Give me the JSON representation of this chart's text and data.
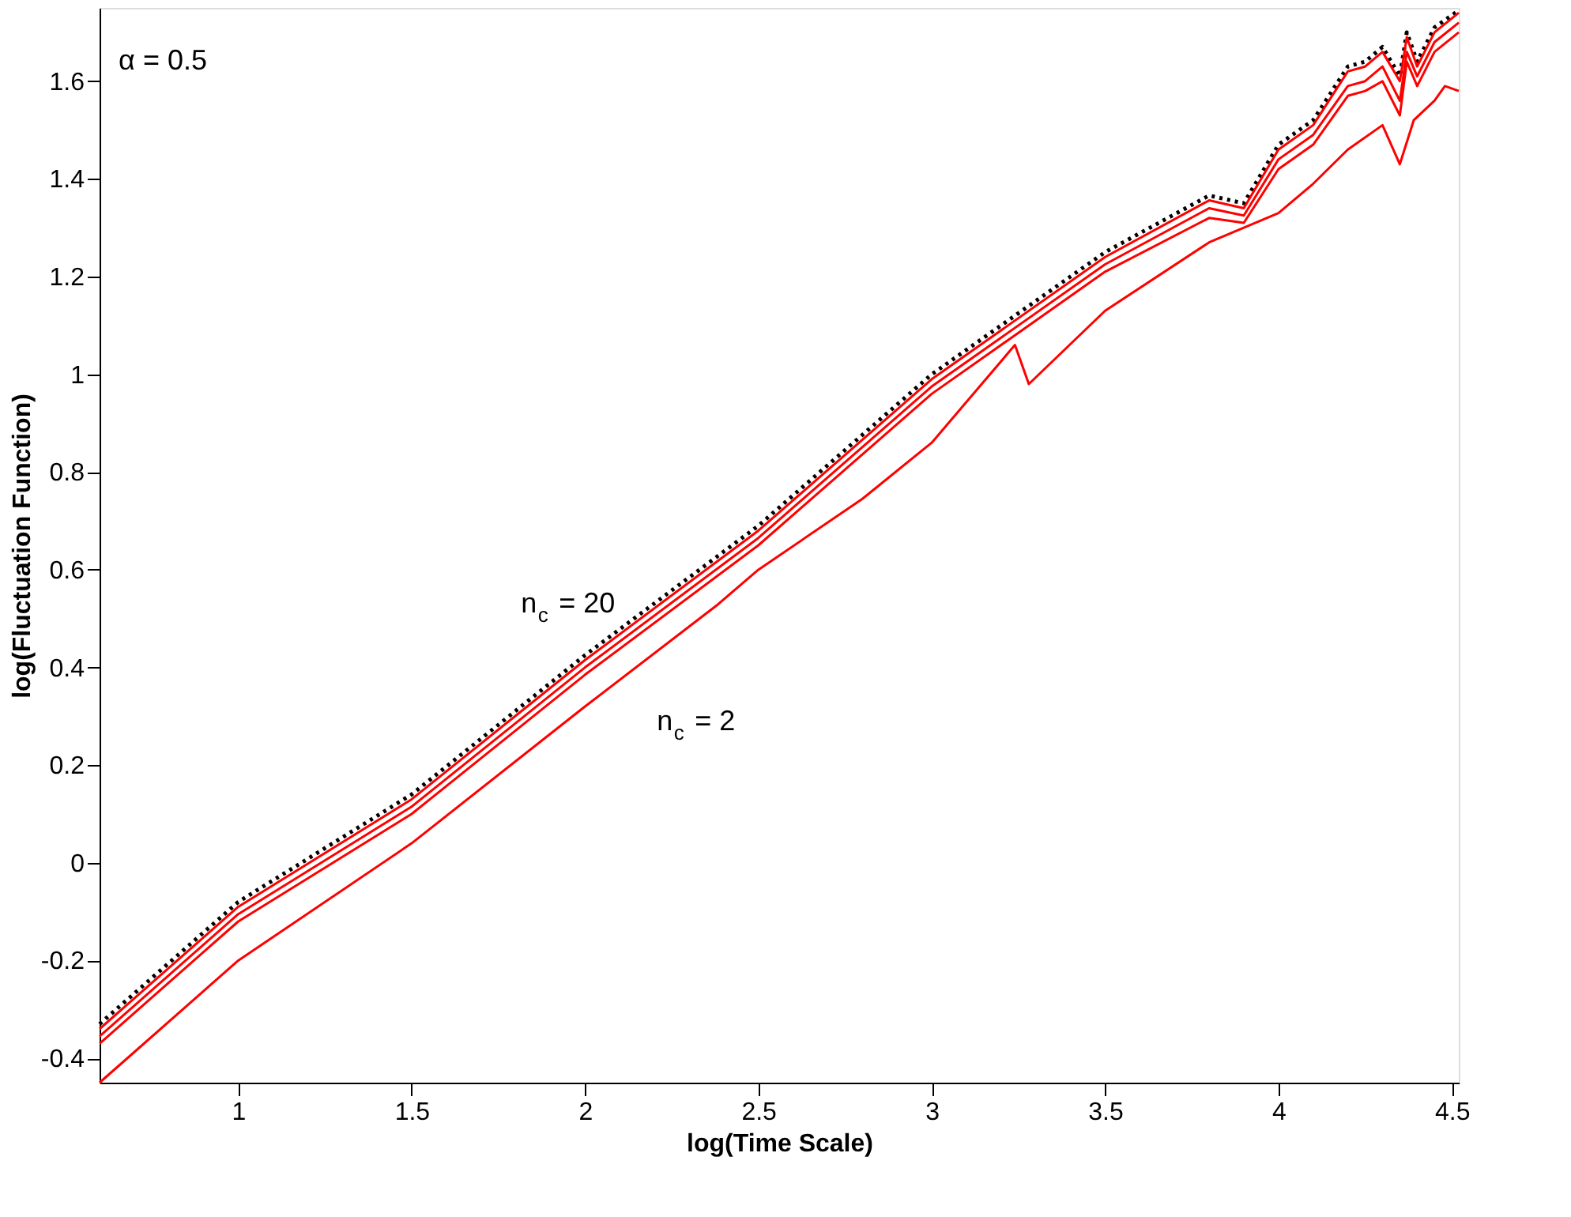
{
  "chart_data": {
    "type": "line",
    "xlabel": "log(Time Scale)",
    "ylabel": "log(Fluctuation Function)",
    "annotations": [
      "α = 0.5",
      "n$_{c}$ = 20",
      "n$_{c}$ = 2"
    ],
    "xlim": [
      0.6,
      4.52
    ],
    "ylim": [
      -0.45,
      1.75
    ],
    "xticks": [
      1,
      1.5,
      2,
      2.5,
      3,
      3.5,
      4,
      4.5
    ],
    "yticks": [
      -0.4,
      -0.2,
      0,
      0.2,
      0.4,
      0.6,
      0.8,
      1,
      1.2,
      1.4,
      1.6
    ],
    "grid": false,
    "series": [
      {
        "color": "#000000",
        "line_style": "dotted",
        "x": [
          0.6,
          1,
          1.5,
          2,
          2.5,
          3,
          3.5,
          3.8,
          3.9,
          4.0,
          4.1,
          4.2,
          4.25,
          4.3,
          4.35,
          4.37,
          4.4,
          4.45,
          4.52
        ],
        "values": [
          -0.33,
          -0.08,
          0.14,
          0.425,
          0.69,
          1.0,
          1.25,
          1.366,
          1.35,
          1.47,
          1.52,
          1.63,
          1.64,
          1.67,
          1.61,
          1.7,
          1.64,
          1.71,
          1.745
        ]
      },
      {
        "color": "#ff0000",
        "line_style": "solid",
        "x": [
          0.6,
          1,
          1.5,
          2,
          2.5,
          3,
          3.5,
          3.8,
          3.9,
          4.0,
          4.1,
          4.2,
          4.25,
          4.3,
          4.35,
          4.37,
          4.4,
          4.45,
          4.52
        ],
        "values": [
          -0.34,
          -0.09,
          0.13,
          0.415,
          0.68,
          0.99,
          1.24,
          1.356,
          1.34,
          1.46,
          1.51,
          1.62,
          1.63,
          1.66,
          1.6,
          1.69,
          1.63,
          1.7,
          1.74
        ]
      },
      {
        "color": "#ff0000",
        "line_style": "solid",
        "x": [
          0.6,
          1,
          1.5,
          2,
          2.5,
          3,
          3.5,
          3.8,
          3.9,
          4.0,
          4.1,
          4.2,
          4.25,
          4.3,
          4.35,
          4.37,
          4.4,
          4.45,
          4.52
        ],
        "values": [
          -0.355,
          -0.105,
          0.115,
          0.4,
          0.665,
          0.975,
          1.225,
          1.34,
          1.325,
          1.44,
          1.49,
          1.59,
          1.6,
          1.63,
          1.56,
          1.66,
          1.61,
          1.68,
          1.72
        ]
      },
      {
        "color": "#ff0000",
        "line_style": "solid",
        "x": [
          0.6,
          1,
          1.5,
          2,
          2.5,
          3,
          3.5,
          3.8,
          3.9,
          4.0,
          4.1,
          4.2,
          4.25,
          4.3,
          4.35,
          4.37,
          4.4,
          4.45,
          4.52
        ],
        "values": [
          -0.37,
          -0.12,
          0.1,
          0.385,
          0.65,
          0.96,
          1.21,
          1.32,
          1.31,
          1.42,
          1.47,
          1.57,
          1.58,
          1.6,
          1.53,
          1.64,
          1.59,
          1.66,
          1.7
        ]
      },
      {
        "color": "#ff0000",
        "line_style": "solid",
        "x": [
          0.6,
          1,
          1.5,
          2,
          2.38,
          2.5,
          2.8,
          3.0,
          3.24,
          3.28,
          3.5,
          3.8,
          4.0,
          4.1,
          4.2,
          4.3,
          4.35,
          4.39,
          4.45,
          4.48,
          4.52
        ],
        "values": [
          -0.45,
          -0.2,
          0.04,
          0.32,
          0.527,
          0.6,
          0.745,
          0.86,
          1.06,
          0.98,
          1.13,
          1.27,
          1.33,
          1.39,
          1.46,
          1.51,
          1.43,
          1.52,
          1.56,
          1.59,
          1.58
        ]
      }
    ]
  }
}
